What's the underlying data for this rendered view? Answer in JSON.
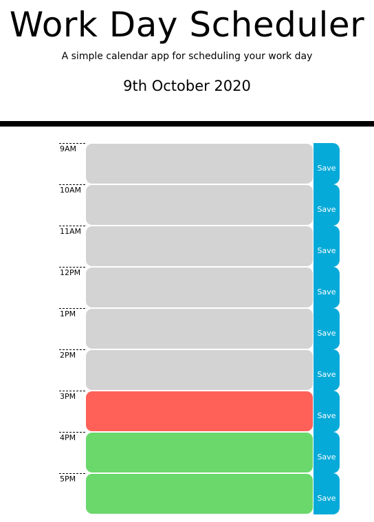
{
  "header": {
    "title": "Work Day Scheduler",
    "subtitle": "A simple calendar app for scheduling your work day",
    "current_day": "9th October 2020"
  },
  "colors": {
    "past": "#d3d3d3",
    "present": "#ff6158",
    "future": "#6bd86c",
    "save": "#06aad9"
  },
  "time_blocks": [
    {
      "hour": "9AM",
      "status": "past",
      "text": "",
      "save_label": "Save"
    },
    {
      "hour": "10AM",
      "status": "past",
      "text": "",
      "save_label": "Save"
    },
    {
      "hour": "11AM",
      "status": "past",
      "text": "",
      "save_label": "Save"
    },
    {
      "hour": "12PM",
      "status": "past",
      "text": "",
      "save_label": "Save"
    },
    {
      "hour": "1PM",
      "status": "past",
      "text": "",
      "save_label": "Save"
    },
    {
      "hour": "2PM",
      "status": "past",
      "text": "",
      "save_label": "Save"
    },
    {
      "hour": "3PM",
      "status": "present",
      "text": "",
      "save_label": "Save"
    },
    {
      "hour": "4PM",
      "status": "future",
      "text": "",
      "save_label": "Save"
    },
    {
      "hour": "5PM",
      "status": "future",
      "text": "",
      "save_label": "Save"
    }
  ]
}
